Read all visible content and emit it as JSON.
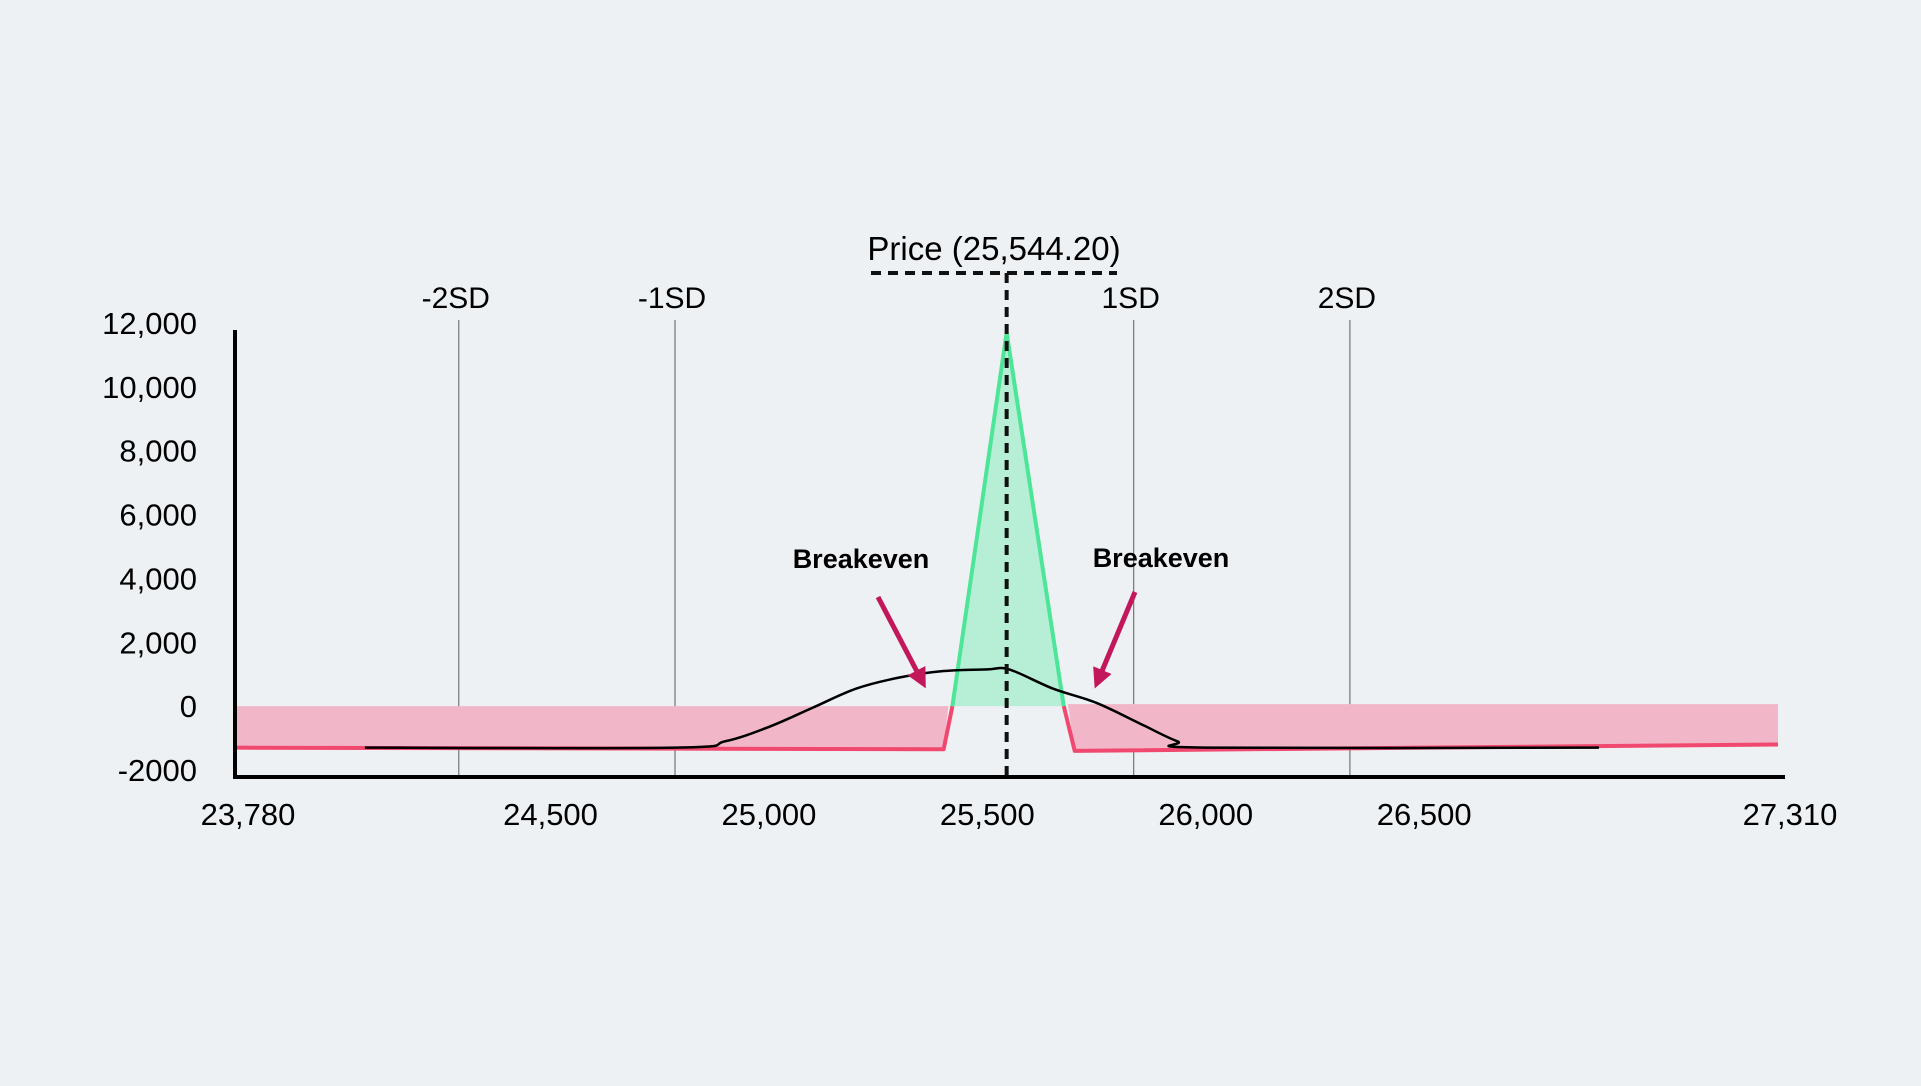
{
  "chart_data": {
    "type": "area",
    "title": "",
    "xlabel": "",
    "ylabel": "",
    "xlim": [
      23780,
      27310
    ],
    "ylim": [
      -2000,
      12000
    ],
    "x_ticks": [
      "23,780",
      "24,500",
      "25,000",
      "25,500",
      "26,000",
      "26,500",
      "27,310"
    ],
    "y_ticks": [
      "12,000",
      "10,000",
      "8,000",
      "6,000",
      "4,000",
      "2,000",
      "0",
      "-2000"
    ],
    "current_price": {
      "x": 25544.2,
      "label": "Price (25,544.20)"
    },
    "std_dev_lines": [
      {
        "label": "-2SD",
        "x": 24290
      },
      {
        "label": "-1SD",
        "x": 24785
      },
      {
        "label": "1SD",
        "x": 25835
      },
      {
        "label": "2SD",
        "x": 26330
      }
    ],
    "breakevens": [
      {
        "label": "Breakeven",
        "x": 25420
      },
      {
        "label": "Breakeven",
        "x": 25675
      }
    ],
    "series": [
      {
        "kind": "payoff",
        "points": [
          [
            23780,
            -1300
          ],
          [
            25400,
            -1350
          ],
          [
            25420,
            0
          ],
          [
            25544.2,
            11700
          ],
          [
            25675,
            0
          ],
          [
            25700,
            -1400
          ],
          [
            27310,
            -1200
          ]
        ]
      },
      {
        "kind": "probability-distribution",
        "points": [
          [
            24075,
            -1300
          ],
          [
            24785,
            -1300
          ],
          [
            24900,
            -1100
          ],
          [
            25000,
            -650
          ],
          [
            25100,
            -50
          ],
          [
            25200,
            550
          ],
          [
            25300,
            900
          ],
          [
            25400,
            1100
          ],
          [
            25500,
            1150
          ],
          [
            25550,
            1150
          ],
          [
            25650,
            550
          ],
          [
            25750,
            100
          ],
          [
            25850,
            -550
          ],
          [
            25935,
            -1100
          ],
          [
            26000,
            -1300
          ],
          [
            26900,
            -1300
          ]
        ]
      }
    ],
    "colors": {
      "profit_line": "#4de699",
      "profit_fill": "#b6eed6",
      "loss_line": "#f0486f",
      "loss_fill": "#f1b7c8",
      "arrow": "#c2185b",
      "distribution": "#000000",
      "background": "#eef1f4"
    },
    "grid": false,
    "legend": "none"
  }
}
